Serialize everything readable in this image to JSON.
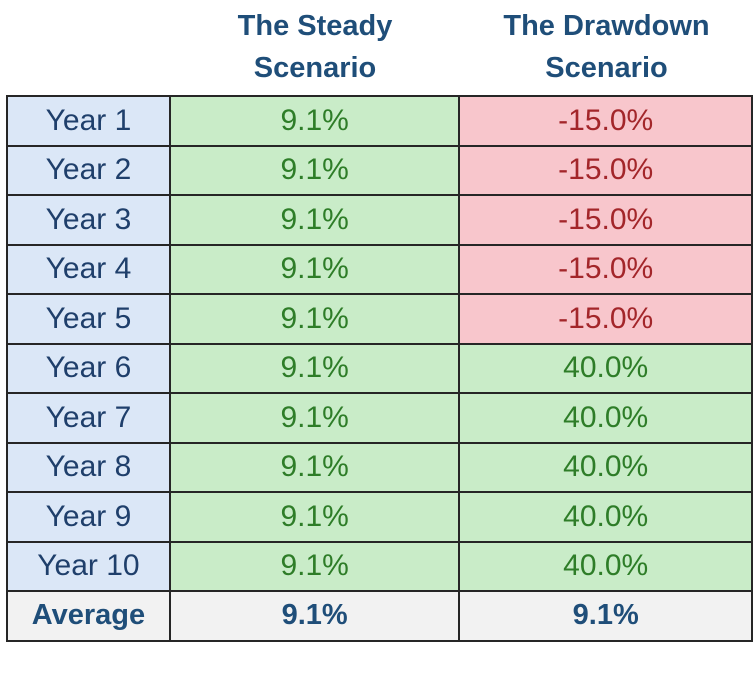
{
  "headers": {
    "steady": [
      "The Steady",
      "Scenario"
    ],
    "drawdown": [
      "The Drawdown",
      "Scenario"
    ]
  },
  "rows": [
    {
      "year": "Year 1",
      "steady": "9.1%",
      "drawdown": "-15.0%",
      "drawdown_sign": "neg"
    },
    {
      "year": "Year 2",
      "steady": "9.1%",
      "drawdown": "-15.0%",
      "drawdown_sign": "neg"
    },
    {
      "year": "Year 3",
      "steady": "9.1%",
      "drawdown": "-15.0%",
      "drawdown_sign": "neg"
    },
    {
      "year": "Year 4",
      "steady": "9.1%",
      "drawdown": "-15.0%",
      "drawdown_sign": "neg"
    },
    {
      "year": "Year 5",
      "steady": "9.1%",
      "drawdown": "-15.0%",
      "drawdown_sign": "neg"
    },
    {
      "year": "Year 6",
      "steady": "9.1%",
      "drawdown": "40.0%",
      "drawdown_sign": "pos"
    },
    {
      "year": "Year 7",
      "steady": "9.1%",
      "drawdown": "40.0%",
      "drawdown_sign": "pos"
    },
    {
      "year": "Year 8",
      "steady": "9.1%",
      "drawdown": "40.0%",
      "drawdown_sign": "pos"
    },
    {
      "year": "Year 9",
      "steady": "9.1%",
      "drawdown": "40.0%",
      "drawdown_sign": "pos"
    },
    {
      "year": "Year 10",
      "steady": "9.1%",
      "drawdown": "40.0%",
      "drawdown_sign": "pos"
    }
  ],
  "average": {
    "label": "Average",
    "steady": "9.1%",
    "drawdown": "9.1%"
  },
  "colors": {
    "header_text": "#1f4e79",
    "year_bg": "#dbe7f7",
    "positive_bg": "#c9ecc8",
    "negative_bg": "#f8c6cc",
    "average_bg": "#f2f2f2"
  }
}
